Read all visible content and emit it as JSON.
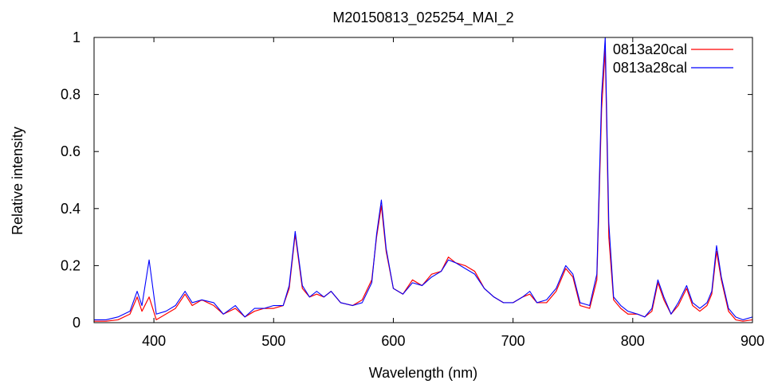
{
  "chart_data": {
    "type": "line",
    "title": "M20150813_025254_MAI_2",
    "xlabel": "Wavelength (nm)",
    "ylabel": "Relative intensity",
    "xlim": [
      350,
      900
    ],
    "ylim": [
      0,
      1
    ],
    "xticks": [
      400,
      500,
      600,
      700,
      800,
      900
    ],
    "yticks": [
      0,
      0.2,
      0.4,
      0.6,
      0.8,
      1
    ],
    "ytick_labels": [
      "0",
      "0.2",
      "0.4",
      "0.6",
      "0.8",
      "1"
    ],
    "grid": false,
    "legend_position": "top-right",
    "series": [
      {
        "name": "0813a20cal",
        "color": "#ff0000",
        "x": [
          350,
          360,
          370,
          380,
          386,
          390,
          396,
          402,
          410,
          418,
          426,
          432,
          440,
          450,
          458,
          468,
          476,
          484,
          492,
          500,
          508,
          513,
          518,
          524,
          530,
          536,
          542,
          548,
          556,
          566,
          574,
          582,
          586,
          590,
          594,
          600,
          608,
          616,
          624,
          632,
          640,
          646,
          652,
          660,
          668,
          676,
          684,
          692,
          700,
          708,
          714,
          720,
          728,
          736,
          744,
          750,
          756,
          764,
          770,
          774,
          777,
          780,
          784,
          790,
          796,
          804,
          810,
          816,
          821,
          826,
          832,
          838,
          845,
          850,
          856,
          862,
          866,
          870,
          874,
          880,
          886,
          892,
          900
        ],
        "values": [
          0.005,
          0.005,
          0.01,
          0.03,
          0.09,
          0.04,
          0.09,
          0.01,
          0.03,
          0.05,
          0.1,
          0.06,
          0.08,
          0.06,
          0.03,
          0.05,
          0.02,
          0.04,
          0.05,
          0.05,
          0.06,
          0.12,
          0.31,
          0.12,
          0.09,
          0.1,
          0.09,
          0.11,
          0.07,
          0.06,
          0.08,
          0.15,
          0.3,
          0.41,
          0.25,
          0.12,
          0.1,
          0.15,
          0.13,
          0.17,
          0.18,
          0.23,
          0.21,
          0.2,
          0.18,
          0.12,
          0.09,
          0.07,
          0.07,
          0.09,
          0.1,
          0.07,
          0.07,
          0.11,
          0.19,
          0.16,
          0.06,
          0.05,
          0.15,
          0.75,
          0.96,
          0.3,
          0.08,
          0.05,
          0.03,
          0.03,
          0.02,
          0.04,
          0.14,
          0.08,
          0.03,
          0.06,
          0.12,
          0.06,
          0.04,
          0.06,
          0.1,
          0.25,
          0.15,
          0.04,
          0.01,
          0.005,
          0.01
        ]
      },
      {
        "name": "0813a28cal",
        "color": "#0000ff",
        "x": [
          350,
          360,
          370,
          380,
          386,
          390,
          396,
          402,
          410,
          418,
          426,
          432,
          440,
          450,
          458,
          468,
          476,
          484,
          492,
          500,
          508,
          513,
          518,
          524,
          530,
          536,
          542,
          548,
          556,
          566,
          574,
          582,
          586,
          590,
          594,
          600,
          608,
          616,
          624,
          632,
          640,
          646,
          652,
          660,
          668,
          676,
          684,
          692,
          700,
          708,
          714,
          720,
          728,
          736,
          744,
          750,
          756,
          764,
          770,
          774,
          777,
          780,
          784,
          790,
          796,
          804,
          810,
          816,
          821,
          826,
          832,
          838,
          845,
          850,
          856,
          862,
          866,
          870,
          874,
          880,
          886,
          892,
          900
        ],
        "values": [
          0.01,
          0.01,
          0.02,
          0.04,
          0.11,
          0.06,
          0.22,
          0.03,
          0.04,
          0.06,
          0.11,
          0.07,
          0.08,
          0.07,
          0.03,
          0.06,
          0.02,
          0.05,
          0.05,
          0.06,
          0.06,
          0.13,
          0.32,
          0.13,
          0.09,
          0.11,
          0.09,
          0.11,
          0.07,
          0.06,
          0.07,
          0.14,
          0.31,
          0.43,
          0.26,
          0.12,
          0.1,
          0.14,
          0.13,
          0.16,
          0.18,
          0.22,
          0.21,
          0.19,
          0.17,
          0.12,
          0.09,
          0.07,
          0.07,
          0.09,
          0.11,
          0.07,
          0.08,
          0.12,
          0.2,
          0.17,
          0.07,
          0.06,
          0.17,
          0.8,
          1.0,
          0.35,
          0.09,
          0.06,
          0.04,
          0.03,
          0.02,
          0.05,
          0.15,
          0.09,
          0.03,
          0.07,
          0.13,
          0.07,
          0.05,
          0.07,
          0.11,
          0.27,
          0.16,
          0.05,
          0.02,
          0.01,
          0.02
        ]
      }
    ]
  }
}
